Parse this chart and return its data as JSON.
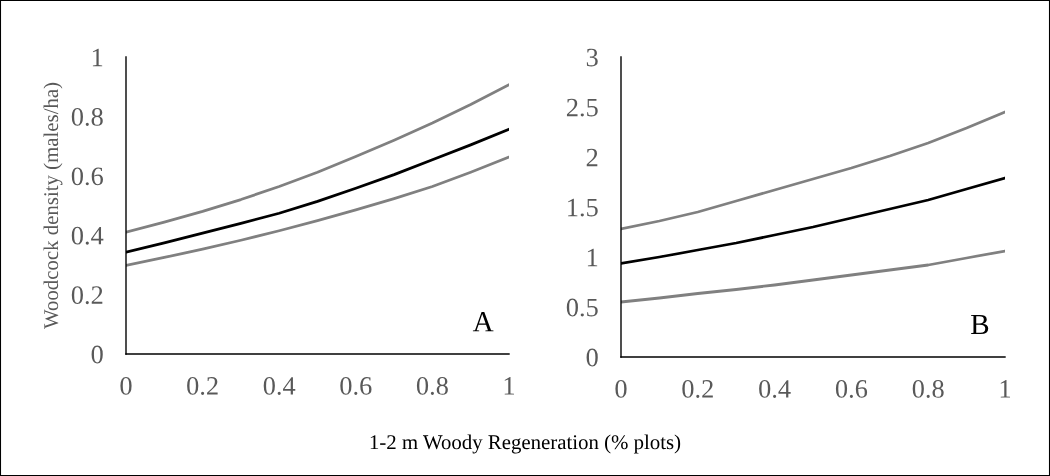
{
  "chart_data": [
    {
      "type": "line",
      "ylabel": "Woodcock density (males/ha)",
      "xlabel": "1-2 m Woody Regeneration (% plots)",
      "annotations": [
        "A"
      ],
      "x": [
        0,
        0.1,
        0.2,
        0.3,
        0.4,
        0.5,
        0.6,
        0.7,
        0.8,
        0.9,
        1
      ],
      "series": [
        {
          "color": "#808080",
          "values": [
            0.41,
            0.444,
            0.48,
            0.52,
            0.564,
            0.612,
            0.665,
            0.72,
            0.778,
            0.84,
            0.907
          ]
        },
        {
          "color": "#000000",
          "values": [
            0.343,
            0.374,
            0.407,
            0.44,
            0.474,
            0.514,
            0.558,
            0.604,
            0.654,
            0.704,
            0.757
          ]
        },
        {
          "color": "#808080",
          "values": [
            0.298,
            0.325,
            0.353,
            0.383,
            0.415,
            0.449,
            0.485,
            0.523,
            0.564,
            0.612,
            0.663
          ]
        }
      ],
      "xlim": [
        0,
        1
      ],
      "xticks": [
        0,
        0.2,
        0.4,
        0.6,
        0.8,
        1
      ],
      "ylim": [
        0,
        1
      ],
      "yticks": [
        0,
        0.2,
        0.4,
        0.6,
        0.8,
        1
      ],
      "grid": false,
      "legend": false
    },
    {
      "type": "line",
      "annotations": [
        "B"
      ],
      "x": [
        0,
        0.1,
        0.2,
        0.3,
        0.4,
        0.5,
        0.6,
        0.7,
        0.8,
        0.9,
        1
      ],
      "series": [
        {
          "color": "#808080",
          "values": [
            1.28,
            1.36,
            1.45,
            1.56,
            1.67,
            1.78,
            1.89,
            2.01,
            2.14,
            2.29,
            2.45
          ]
        },
        {
          "color": "#000000",
          "values": [
            0.935,
            1.0,
            1.07,
            1.14,
            1.22,
            1.3,
            1.39,
            1.48,
            1.57,
            1.68,
            1.79
          ]
        },
        {
          "color": "#808080",
          "values": [
            0.55,
            0.59,
            0.635,
            0.675,
            0.72,
            0.77,
            0.82,
            0.87,
            0.92,
            0.99,
            1.06
          ]
        }
      ],
      "xlim": [
        0,
        1
      ],
      "xticks": [
        0,
        0.2,
        0.4,
        0.6,
        0.8,
        1
      ],
      "ylim": [
        0,
        3
      ],
      "yticks": [
        0,
        0.5,
        1,
        1.5,
        2,
        2.5,
        3
      ],
      "grid": false,
      "legend": false
    }
  ]
}
